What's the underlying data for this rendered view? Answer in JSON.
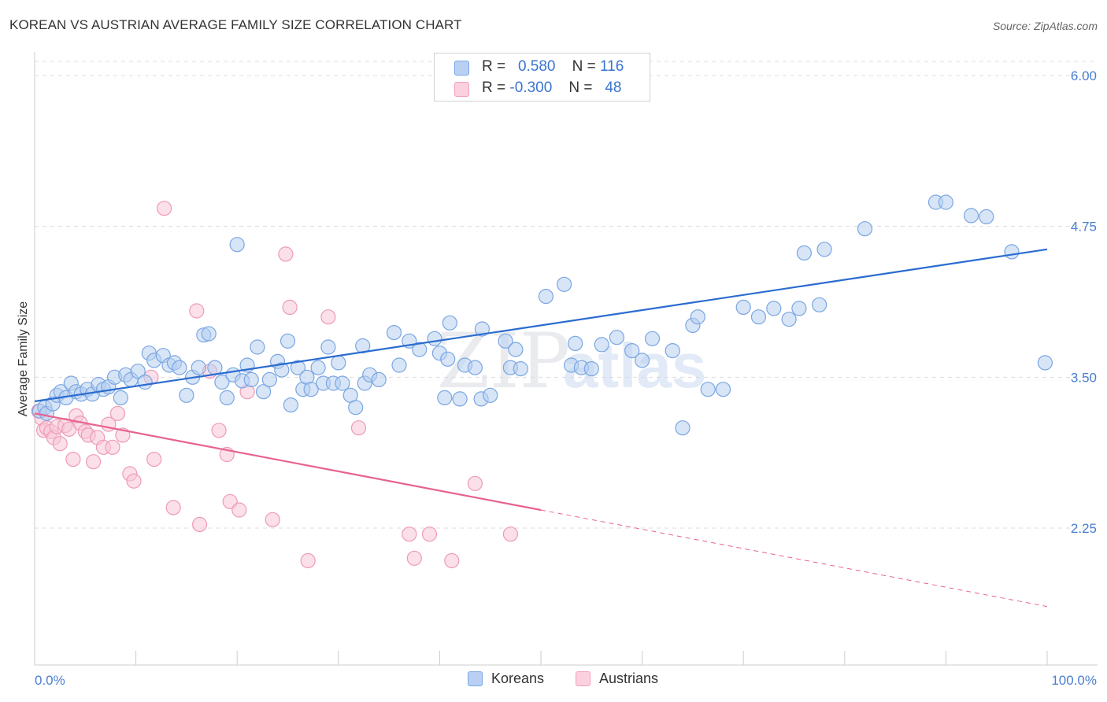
{
  "header": {
    "title": "KOREAN VS AUSTRIAN AVERAGE FAMILY SIZE CORRELATION CHART",
    "source": "Source: ZipAtlas.com"
  },
  "legend": {
    "rows": [
      {
        "r_label": "R =",
        "r_value": "0.580",
        "n_label": "N =",
        "n_value": "116"
      },
      {
        "r_label": "R =",
        "r_value": "-0.300",
        "n_label": "N =",
        "n_value": "48"
      }
    ]
  },
  "watermark": {
    "part1": "ZIP",
    "part2": "atlas"
  },
  "chart_data": {
    "type": "scatter",
    "title": "KOREAN VS AUSTRIAN AVERAGE FAMILY SIZE CORRELATION CHART",
    "xlabel": "",
    "ylabel": "Average Family Size",
    "xlim": [
      0,
      100
    ],
    "ylim": [
      1.25,
      6.15
    ],
    "x_tick_labels": [
      "0.0%",
      "100.0%"
    ],
    "y_ticks": [
      2.25,
      3.5,
      4.75,
      6.0
    ],
    "y_tick_labels": [
      "2.25",
      "3.50",
      "4.75",
      "6.00"
    ],
    "grid": true,
    "legend_position": "top-center and bottom",
    "colors": {
      "Koreans": "#7aa8e6",
      "Austrians": "#f2a0bb",
      "korean_line": "#2a6cd0",
      "austrian_line": "#e8628f"
    },
    "series": [
      {
        "name": "Koreans",
        "r": 0.58,
        "n": 116,
        "trend": {
          "x0": 0,
          "y0": 3.3,
          "x1": 100,
          "y1": 4.56
        },
        "points": [
          [
            0.5,
            3.22
          ],
          [
            1.0,
            3.25
          ],
          [
            1.2,
            3.2
          ],
          [
            1.8,
            3.28
          ],
          [
            2.2,
            3.35
          ],
          [
            2.6,
            3.38
          ],
          [
            3.1,
            3.33
          ],
          [
            3.6,
            3.45
          ],
          [
            4.1,
            3.38
          ],
          [
            4.6,
            3.36
          ],
          [
            5.2,
            3.4
          ],
          [
            5.7,
            3.36
          ],
          [
            6.3,
            3.44
          ],
          [
            6.8,
            3.4
          ],
          [
            7.3,
            3.42
          ],
          [
            7.9,
            3.5
          ],
          [
            8.5,
            3.33
          ],
          [
            9.0,
            3.52
          ],
          [
            9.5,
            3.48
          ],
          [
            10.2,
            3.55
          ],
          [
            10.9,
            3.46
          ],
          [
            11.3,
            3.7
          ],
          [
            11.8,
            3.64
          ],
          [
            12.7,
            3.68
          ],
          [
            13.3,
            3.6
          ],
          [
            13.8,
            3.62
          ],
          [
            14.3,
            3.58
          ],
          [
            15.0,
            3.35
          ],
          [
            15.6,
            3.5
          ],
          [
            16.2,
            3.58
          ],
          [
            16.7,
            3.85
          ],
          [
            17.2,
            3.86
          ],
          [
            17.8,
            3.58
          ],
          [
            18.5,
            3.46
          ],
          [
            19.0,
            3.33
          ],
          [
            19.6,
            3.52
          ],
          [
            20.0,
            4.6
          ],
          [
            20.5,
            3.47
          ],
          [
            21.0,
            3.6
          ],
          [
            21.4,
            3.48
          ],
          [
            22.0,
            3.75
          ],
          [
            22.6,
            3.38
          ],
          [
            23.2,
            3.48
          ],
          [
            24.0,
            3.63
          ],
          [
            24.4,
            3.56
          ],
          [
            25.0,
            3.8
          ],
          [
            25.3,
            3.27
          ],
          [
            26.0,
            3.58
          ],
          [
            26.5,
            3.4
          ],
          [
            26.9,
            3.5
          ],
          [
            27.3,
            3.4
          ],
          [
            28.0,
            3.58
          ],
          [
            28.5,
            3.45
          ],
          [
            29.0,
            3.75
          ],
          [
            29.5,
            3.45
          ],
          [
            30.0,
            3.62
          ],
          [
            30.4,
            3.45
          ],
          [
            31.2,
            3.35
          ],
          [
            31.7,
            3.25
          ],
          [
            32.4,
            3.76
          ],
          [
            32.6,
            3.45
          ],
          [
            33.1,
            3.52
          ],
          [
            34.0,
            3.48
          ],
          [
            35.5,
            3.87
          ],
          [
            36.0,
            3.6
          ],
          [
            37.0,
            3.8
          ],
          [
            38.0,
            3.73
          ],
          [
            39.5,
            3.82
          ],
          [
            40.0,
            3.7
          ],
          [
            40.5,
            3.33
          ],
          [
            40.8,
            3.65
          ],
          [
            41.0,
            3.95
          ],
          [
            42.0,
            3.32
          ],
          [
            42.5,
            3.6
          ],
          [
            43.5,
            3.58
          ],
          [
            44.1,
            3.32
          ],
          [
            44.2,
            3.9
          ],
          [
            45.0,
            3.35
          ],
          [
            46.5,
            3.8
          ],
          [
            47.0,
            3.58
          ],
          [
            47.5,
            3.73
          ],
          [
            48.0,
            3.57
          ],
          [
            50.5,
            4.17
          ],
          [
            52.3,
            4.27
          ],
          [
            53.0,
            3.6
          ],
          [
            53.4,
            3.78
          ],
          [
            54.0,
            3.58
          ],
          [
            55.0,
            3.57
          ],
          [
            56.0,
            3.77
          ],
          [
            57.5,
            3.83
          ],
          [
            59.0,
            3.72
          ],
          [
            60.0,
            3.64
          ],
          [
            61.0,
            3.82
          ],
          [
            63.0,
            3.72
          ],
          [
            64.0,
            3.08
          ],
          [
            65.0,
            3.93
          ],
          [
            65.5,
            4.0
          ],
          [
            66.5,
            3.4
          ],
          [
            68.0,
            3.4
          ],
          [
            70.0,
            4.08
          ],
          [
            71.5,
            4.0
          ],
          [
            73.0,
            4.07
          ],
          [
            74.5,
            3.98
          ],
          [
            75.5,
            4.07
          ],
          [
            76.0,
            4.53
          ],
          [
            77.5,
            4.1
          ],
          [
            78.0,
            4.56
          ],
          [
            82.0,
            4.73
          ],
          [
            89.0,
            4.95
          ],
          [
            90.0,
            4.95
          ],
          [
            92.5,
            4.84
          ],
          [
            94.0,
            4.83
          ],
          [
            96.5,
            4.54
          ],
          [
            99.8,
            3.62
          ]
        ]
      },
      {
        "name": "Austrians",
        "r": -0.3,
        "n": 48,
        "trend": {
          "x0": 0,
          "y0": 3.2,
          "x1": 50,
          "y1": 2.4,
          "dashed_to": {
            "x": 100,
            "y": 1.6
          }
        },
        "points": [
          [
            0.4,
            3.22
          ],
          [
            0.7,
            3.16
          ],
          [
            0.9,
            3.06
          ],
          [
            1.2,
            3.08
          ],
          [
            1.6,
            3.05
          ],
          [
            1.9,
            3.0
          ],
          [
            2.2,
            3.09
          ],
          [
            2.5,
            2.95
          ],
          [
            3.0,
            3.1
          ],
          [
            3.4,
            3.07
          ],
          [
            3.8,
            2.82
          ],
          [
            4.1,
            3.18
          ],
          [
            4.5,
            3.12
          ],
          [
            5.0,
            3.05
          ],
          [
            5.3,
            3.02
          ],
          [
            5.8,
            2.8
          ],
          [
            6.2,
            3.0
          ],
          [
            6.8,
            2.92
          ],
          [
            7.3,
            3.11
          ],
          [
            7.7,
            2.92
          ],
          [
            8.2,
            3.2
          ],
          [
            8.7,
            3.02
          ],
          [
            9.4,
            2.7
          ],
          [
            9.8,
            2.64
          ],
          [
            11.5,
            3.5
          ],
          [
            11.8,
            2.82
          ],
          [
            12.8,
            4.9
          ],
          [
            13.7,
            2.42
          ],
          [
            16.0,
            4.05
          ],
          [
            16.3,
            2.28
          ],
          [
            17.3,
            3.55
          ],
          [
            18.2,
            3.06
          ],
          [
            19.0,
            2.86
          ],
          [
            19.3,
            2.47
          ],
          [
            20.2,
            2.4
          ],
          [
            21.0,
            3.38
          ],
          [
            23.5,
            2.32
          ],
          [
            24.8,
            4.52
          ],
          [
            25.2,
            4.08
          ],
          [
            27.0,
            1.98
          ],
          [
            29.0,
            4.0
          ],
          [
            32.0,
            3.08
          ],
          [
            37.0,
            2.2
          ],
          [
            37.5,
            2.0
          ],
          [
            39.0,
            2.2
          ],
          [
            41.2,
            1.98
          ],
          [
            43.5,
            2.62
          ],
          [
            47.0,
            2.2
          ]
        ]
      }
    ]
  }
}
